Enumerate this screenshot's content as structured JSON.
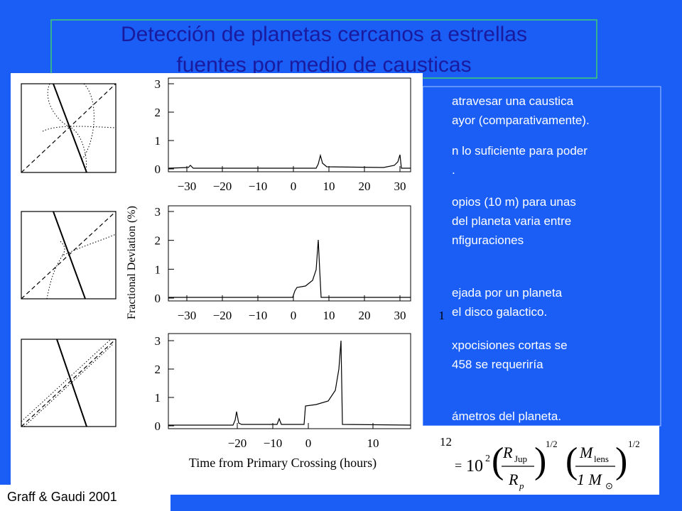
{
  "title": {
    "lines": [
      "Detección de planetas cercanos a estrellas",
      "fuentes por medio de causticas"
    ]
  },
  "body_fragments": [
    [
      "atravesar una caustica",
      "ayor (comparativamente)."
    ],
    [
      "n  lo suficiente para poder",
      "."
    ],
    [
      "opios (10 m) para unas",
      "del planeta varia entre",
      "nfiguraciones"
    ],
    [
      "ejada por un planeta",
      "el disco galactico."
    ],
    [
      "xpocisiones cortas se",
      "458 se requeriría"
    ],
    [
      "ámetros del planeta."
    ]
  ],
  "formula": {
    "lhs": "=",
    "base": "10",
    "exp": "2",
    "num1": "R",
    "num1_sub": "Jup",
    "den1": "R",
    "den1_sub": "p",
    "pow1": "1/2",
    "num2": "M",
    "num2_sub": "lens",
    "den2": "1  M",
    "den2_sub": "⊙",
    "pow2": "1/2"
  },
  "figure": {
    "ylabel": "Fractional Deviation (%)",
    "xlabel": "Time from Primary Crossing (hours)",
    "panels": [
      {
        "xticks": [
          "−30",
          "−20",
          "−10",
          "0",
          "10",
          "20",
          "30"
        ],
        "yticks": [
          "0",
          "1",
          "2",
          "3"
        ]
      },
      {
        "xticks": [
          "−30",
          "−20",
          "−10",
          "0",
          "10",
          "20",
          "30"
        ],
        "yticks": [
          "0",
          "1",
          "2",
          "3"
        ]
      },
      {
        "xticks": [
          "−20",
          "−10",
          "0",
          "10"
        ],
        "yticks": [
          "0",
          "1",
          "2",
          "3"
        ]
      }
    ],
    "clip_labels": [
      "1",
      "12"
    ]
  },
  "caption": "Graff & Gaudi 2001"
}
